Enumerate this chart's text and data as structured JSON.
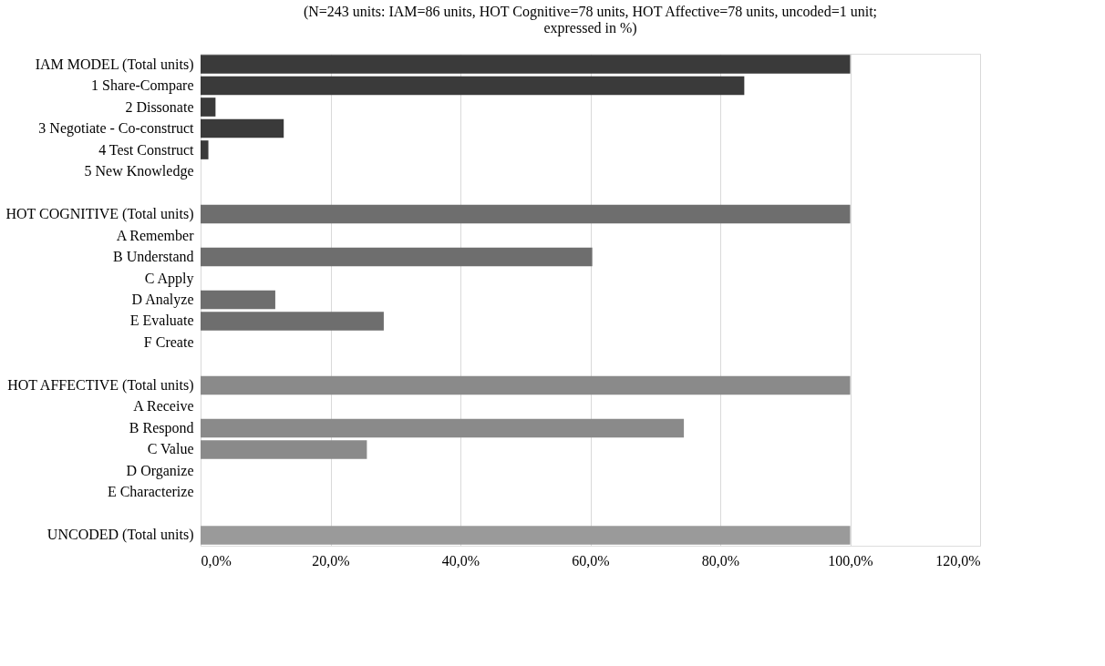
{
  "chart_data": {
    "type": "bar",
    "orientation": "horizontal",
    "title": "(N=243 units: IAM=86 units, HOT Cognitive=78 units, HOT Affective=78 units, uncoded=1 unit; expressed in %)",
    "categories": [
      "IAM MODEL (Total units)",
      "1 Share-Compare",
      "2 Dissonate",
      "3 Negotiate - Co-construct",
      "4 Test Construct",
      "5 New Knowledge",
      null,
      "HOT COGNITIVE (Total units)",
      "A Remember",
      "B Understand",
      "C Apply",
      "D Analyze",
      "E Evaluate",
      "F Create",
      null,
      "HOT AFFECTIVE (Total units)",
      "A Receive",
      "B Respond",
      "C Value",
      "D Organize",
      "E Characterize",
      null,
      "UNCODED (Total units)"
    ],
    "values": [
      100,
      83.7,
      2.3,
      12.8,
      1.2,
      0,
      null,
      100,
      0,
      60.3,
      0,
      11.5,
      28.2,
      0,
      null,
      100,
      0,
      74.4,
      25.6,
      0,
      0,
      null,
      100
    ],
    "colors": [
      "#3a3a3a",
      "#3a3a3a",
      "#3a3a3a",
      "#3a3a3a",
      "#3a3a3a",
      "#3a3a3a",
      null,
      "#6e6e6e",
      "#6e6e6e",
      "#6e6e6e",
      "#6e6e6e",
      "#6e6e6e",
      "#6e6e6e",
      "#6e6e6e",
      null,
      "#8a8a8a",
      "#8a8a8a",
      "#8a8a8a",
      "#8a8a8a",
      "#8a8a8a",
      "#8a8a8a",
      null,
      "#9a9a9a"
    ],
    "xlim": [
      0,
      120
    ],
    "xticks": [
      {
        "value": 0,
        "label": "0,0%"
      },
      {
        "value": 20,
        "label": "20,0%"
      },
      {
        "value": 40,
        "label": "40,0%"
      },
      {
        "value": 60,
        "label": "60,0%"
      },
      {
        "value": 80,
        "label": "80,0%"
      },
      {
        "value": 100,
        "label": "100,0%"
      },
      {
        "value": 120,
        "label": "120,0%"
      }
    ],
    "grid": "x"
  }
}
